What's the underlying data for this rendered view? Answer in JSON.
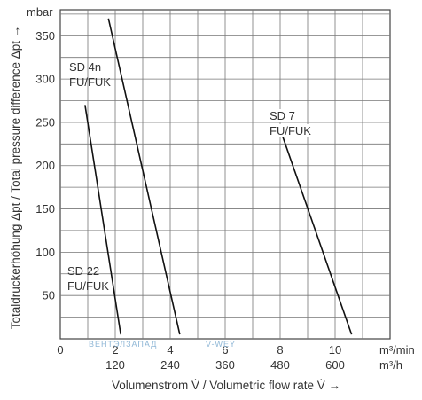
{
  "chart_data": {
    "type": "line",
    "title": "",
    "xlabel": "Volumenstrom V̇ / Volumetric flow rate V̇ →",
    "ylabel": "Totaldruckerhöhung Δpt / Total pressure difference Δpt →",
    "x_unit_primary": "m³/min",
    "x_unit_secondary": "m³/h",
    "y_unit": "mbar",
    "xlim": [
      0,
      12
    ],
    "ylim": [
      0,
      380
    ],
    "grid": true,
    "x_ticks_primary": [
      "0",
      "2",
      "4",
      "6",
      "8",
      "10"
    ],
    "x_ticks_primary_values": [
      0,
      2,
      4,
      6,
      8,
      10
    ],
    "x_ticks_secondary": [
      "120",
      "240",
      "360",
      "480",
      "600"
    ],
    "x_ticks_secondary_values": [
      2,
      4,
      6,
      8,
      10
    ],
    "y_ticks": [
      "50",
      "100",
      "150",
      "200",
      "250",
      "300",
      "350"
    ],
    "y_ticks_values": [
      50,
      100,
      150,
      200,
      250,
      300,
      350
    ],
    "series": [
      {
        "name": "SD 22 FU/FUK",
        "label_lines": [
          "SD 22",
          "FU/FUK"
        ],
        "x": [
          0.9,
          2.2
        ],
        "y": [
          270,
          5
        ]
      },
      {
        "name": "SD 4n FU/FUK",
        "label_lines": [
          "SD 4n",
          "FU/FUK"
        ],
        "x": [
          1.75,
          4.35
        ],
        "y": [
          370,
          5
        ]
      },
      {
        "name": "SD 7 FU/FUK",
        "label_lines": [
          "SD 7",
          "FU/FUK"
        ],
        "x": [
          8.0,
          10.6
        ],
        "y": [
          242,
          5
        ]
      }
    ],
    "watermark": [
      "ВЕНТЭЛЗАПАД",
      "V-WEY"
    ]
  }
}
